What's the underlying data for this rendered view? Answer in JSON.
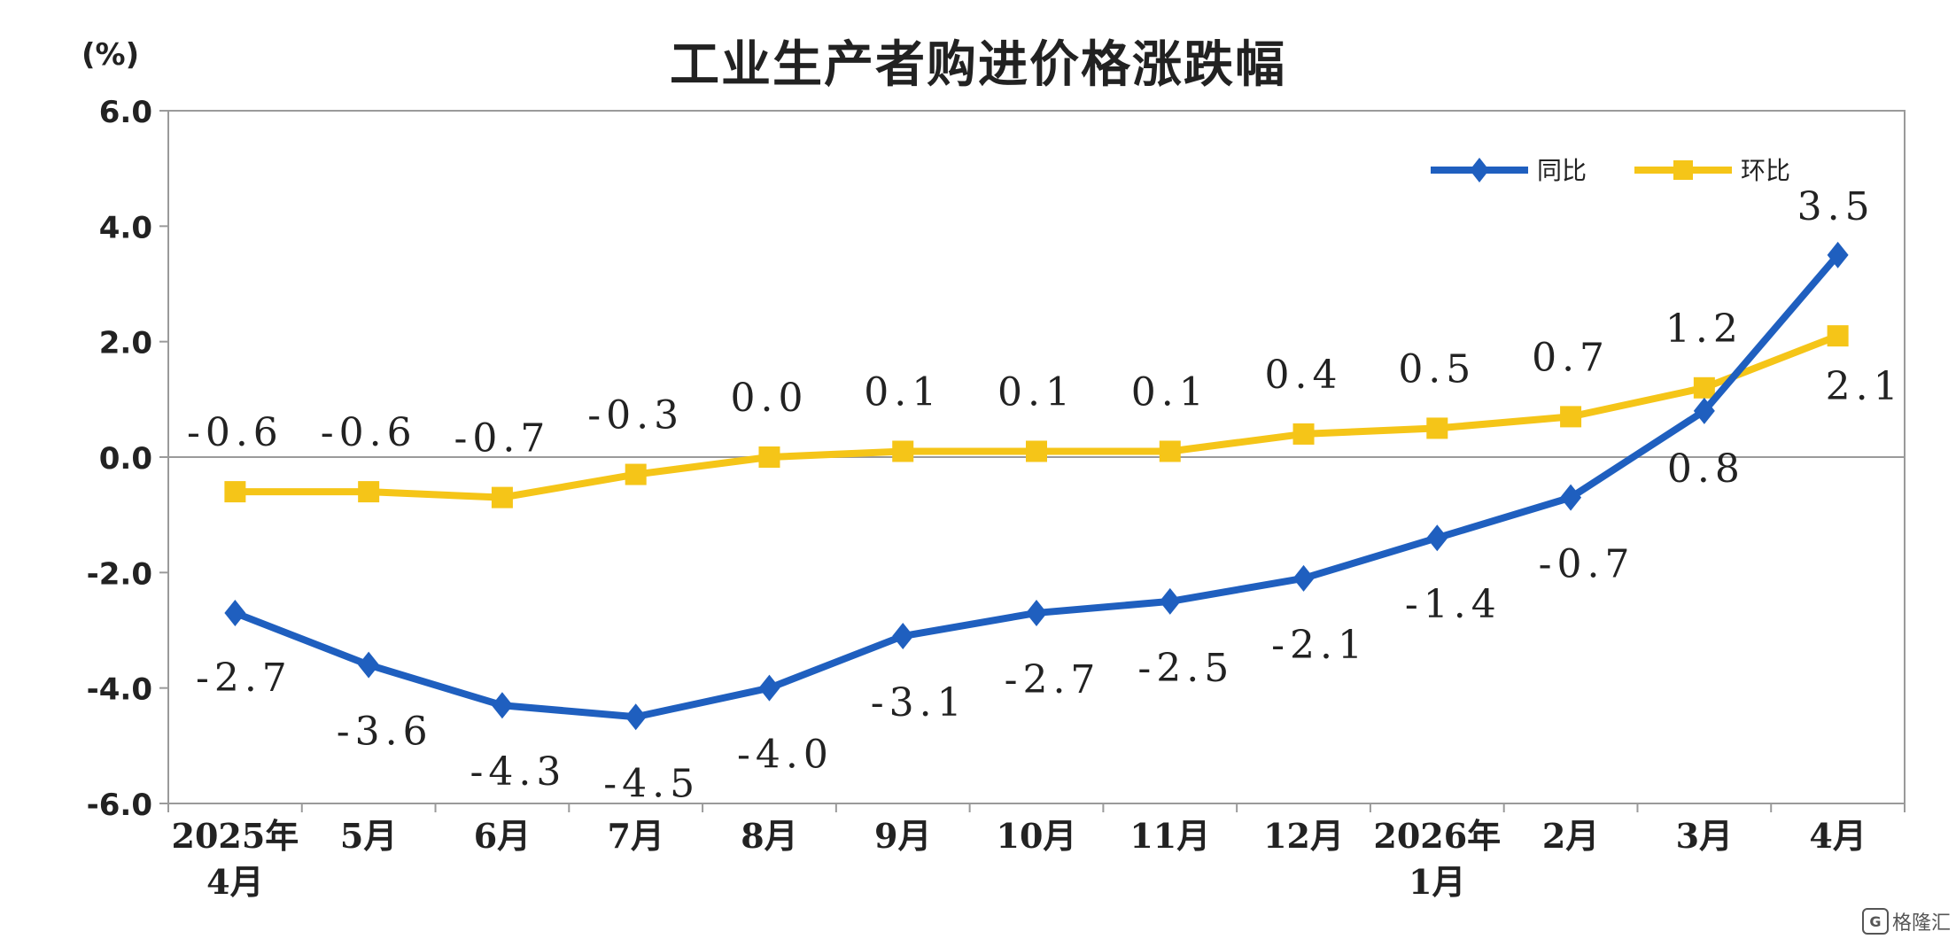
{
  "chart_data": {
    "type": "line",
    "title": "工业生产者购进价格涨跌幅",
    "unit": "(%)",
    "categories": [
      [
        "2025年",
        "4月"
      ],
      [
        "5月"
      ],
      [
        "6月"
      ],
      [
        "7月"
      ],
      [
        "8月"
      ],
      [
        "9月"
      ],
      [
        "10月"
      ],
      [
        "11月"
      ],
      [
        "12月"
      ],
      [
        "2026年",
        "1月"
      ],
      [
        "2月"
      ],
      [
        "3月"
      ],
      [
        "4月"
      ]
    ],
    "ylim": [
      -6.0,
      6.0
    ],
    "yticks": [
      "6.0",
      "4.0",
      "2.0",
      "0.0",
      "-2.0",
      "-4.0",
      "-6.0"
    ],
    "ytick_values": [
      6,
      4,
      2,
      0,
      -2,
      -4,
      -6
    ],
    "legend_position": "top-right",
    "series": [
      {
        "name": "同比",
        "color": "#1f5fbf",
        "marker": "diamond",
        "values": [
          -2.7,
          -3.6,
          -4.3,
          -4.5,
          -4.0,
          -3.1,
          -2.7,
          -2.5,
          -2.1,
          -1.4,
          -0.7,
          0.8,
          3.5
        ],
        "labels": [
          "-2.7",
          "-3.6",
          "-4.3",
          "-4.5",
          "-4.0",
          "-3.1",
          "-2.7",
          "-2.5",
          "-2.1",
          "-1.4",
          "-0.7",
          "0.8",
          "3.5"
        ]
      },
      {
        "name": "环比",
        "color": "#f5c518",
        "marker": "square",
        "values": [
          -0.6,
          -0.6,
          -0.7,
          -0.3,
          0.0,
          0.1,
          0.1,
          0.1,
          0.4,
          0.5,
          0.7,
          1.2,
          2.1
        ],
        "labels": [
          "-0.6",
          "-0.6",
          "-0.7",
          "-0.3",
          "0.0",
          "0.1",
          "0.1",
          "0.1",
          "0.4",
          "0.5",
          "0.7",
          "1.2",
          "2.1"
        ]
      }
    ]
  },
  "watermark": "格隆汇",
  "watermark_icon": "G"
}
